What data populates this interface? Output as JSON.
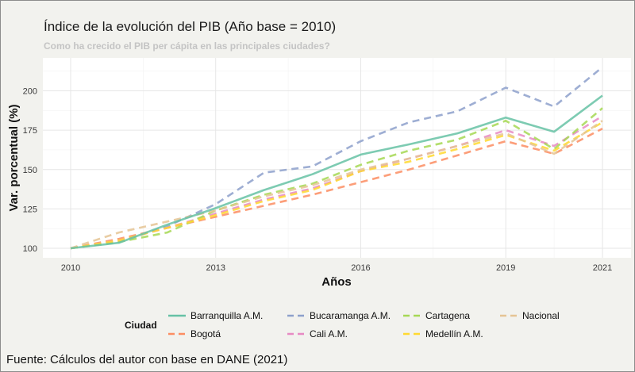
{
  "chart_data": {
    "type": "line",
    "title": "Índice de la evolución del PIB (Año base = 2010)",
    "subtitle": "Como ha crecido el PIB per cápita en las principales ciudades?",
    "xlabel": "Años",
    "ylabel": "Var. porcentual (%)",
    "xlim": [
      2010,
      2021
    ],
    "ylim": [
      95,
      220
    ],
    "x_ticks": [
      2010,
      2013,
      2016,
      2019,
      2021
    ],
    "y_ticks": [
      100,
      125,
      150,
      175,
      200
    ],
    "grid": true,
    "legend_title": "Ciudad",
    "legend_position": "bottom",
    "x": [
      2010,
      2011,
      2012,
      2013,
      2014,
      2015,
      2016,
      2017,
      2018,
      2019,
      2020,
      2021
    ],
    "series": [
      {
        "name": "Barranquilla A.M.",
        "color": "#66c2a5",
        "dashed": false,
        "values": [
          100,
          103.5,
          115,
          125.5,
          137,
          147,
          159.5,
          166,
          173,
          183,
          174,
          197
        ]
      },
      {
        "name": "Bogotá",
        "color": "#fc8d62",
        "dashed": true,
        "values": [
          100,
          106,
          113,
          120,
          127,
          134,
          142,
          150,
          159,
          168,
          160,
          176
        ]
      },
      {
        "name": "Bucaramanga A.M.",
        "color": "#8da0cb",
        "dashed": true,
        "values": [
          100,
          104,
          114,
          128,
          148,
          152,
          168,
          180,
          187,
          202,
          190,
          215
        ]
      },
      {
        "name": "Cali A.M.",
        "color": "#e78ac3",
        "dashed": true,
        "values": [
          100,
          105,
          113,
          122,
          131,
          138,
          149,
          157,
          165,
          175,
          165,
          184
        ]
      },
      {
        "name": "Cartagena",
        "color": "#a6d854",
        "dashed": true,
        "values": [
          100,
          104,
          110,
          124,
          134,
          141,
          153,
          162,
          169,
          181,
          163,
          189
        ]
      },
      {
        "name": "Medellín A.M.",
        "color": "#ffd92f",
        "dashed": true,
        "values": [
          100,
          105,
          113,
          121,
          130,
          137,
          149,
          155,
          163,
          172,
          162,
          180
        ]
      },
      {
        "name": "Nacional",
        "color": "#e5c494",
        "dashed": true,
        "values": [
          100,
          110,
          117,
          124,
          133,
          140,
          150,
          157,
          165,
          173,
          160,
          181
        ]
      }
    ]
  },
  "source": "Fuente: Cálculos del autor con base en DANE (2021)"
}
